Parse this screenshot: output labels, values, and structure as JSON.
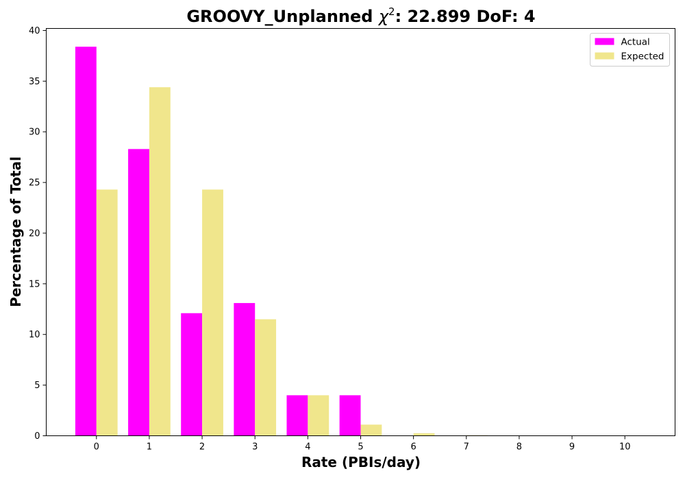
{
  "chart_data": {
    "type": "bar",
    "title_prefix": "GROOVY_Unplanned ",
    "title_symbol": "χ",
    "title_superscript": "2",
    "title_suffix": ": 22.899 DoF: 4",
    "xlabel": "Rate (PBIs/day)",
    "ylabel": "Percentage of Total",
    "categories": [
      "0",
      "1",
      "2",
      "3",
      "4",
      "5",
      "6",
      "7",
      "8",
      "9",
      "10"
    ],
    "series": [
      {
        "name": "Actual",
        "color": "#ff00ff",
        "values": [
          38.4,
          28.3,
          12.1,
          13.1,
          4.0,
          4.0,
          0,
          0,
          0,
          0,
          0
        ]
      },
      {
        "name": "Expected",
        "color": "#f0e68c",
        "values": [
          24.3,
          34.4,
          24.3,
          11.5,
          4.0,
          1.1,
          0.25,
          0.05,
          0.01,
          0,
          0
        ]
      }
    ],
    "ylim": [
      0,
      40.2
    ],
    "yticks": [
      0,
      5,
      10,
      15,
      20,
      25,
      30,
      35,
      40
    ],
    "xlim": [
      -0.95,
      10.95
    ],
    "grid": false,
    "legend_position": "top-right"
  }
}
